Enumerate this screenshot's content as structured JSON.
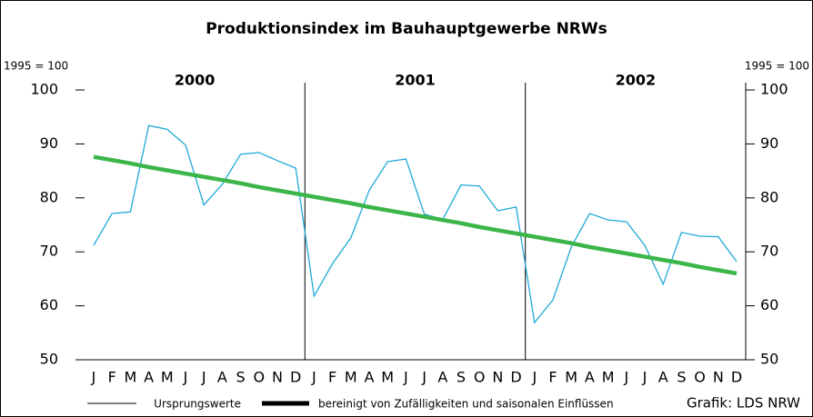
{
  "chart_data": {
    "type": "line",
    "title": "Produktionsindex im Bauhauptgewerbe NRWs",
    "y_label": "1995 = 100",
    "y2_label": "1995 = 100",
    "years": [
      "2000",
      "2001",
      "2002"
    ],
    "categories": [
      "J",
      "F",
      "M",
      "A",
      "M",
      "J",
      "J",
      "A",
      "S",
      "O",
      "N",
      "D",
      "J",
      "F",
      "M",
      "A",
      "M",
      "J",
      "J",
      "A",
      "S",
      "O",
      "N",
      "D",
      "J",
      "F",
      "M",
      "A",
      "M",
      "J",
      "J",
      "A",
      "S",
      "O",
      "N",
      "D"
    ],
    "series": [
      {
        "name": "Ursprungswerte",
        "color": "#1fa9d6",
        "values": [
          71.2,
          77.1,
          77.4,
          93.4,
          92.7,
          89.8,
          78.7,
          82.5,
          88.1,
          88.4,
          86.9,
          85.5,
          61.8,
          67.8,
          72.6,
          81.4,
          86.7,
          87.2,
          77.0,
          76.0,
          82.4,
          82.2,
          77.6,
          78.3,
          56.9,
          61.1,
          70.9,
          77.1,
          75.9,
          75.6,
          71.2,
          64.0,
          73.6,
          72.9,
          72.8,
          68.2
        ]
      },
      {
        "name": "bereinigt von Zufälligkeiten und saisonalen Einflüssen",
        "color": "#3cb54a",
        "values": [
          87.6,
          87.0,
          86.4,
          85.7,
          85.1,
          84.5,
          83.9,
          83.3,
          82.7,
          82.0,
          81.4,
          80.8,
          80.2,
          79.6,
          79.0,
          78.3,
          77.7,
          77.1,
          76.5,
          75.9,
          75.3,
          74.6,
          74.0,
          73.4,
          72.8,
          72.2,
          71.6,
          70.9,
          70.3,
          69.7,
          69.1,
          68.5,
          67.9,
          67.2,
          66.6,
          66.0
        ]
      }
    ],
    "ylim": [
      50,
      100
    ],
    "yticks": [
      50,
      60,
      70,
      80,
      90,
      100
    ],
    "y2lim": [
      50,
      100
    ],
    "y2ticks": [
      50,
      60,
      70,
      80,
      90,
      100
    ],
    "source": "Grafik: LDS NRW"
  }
}
